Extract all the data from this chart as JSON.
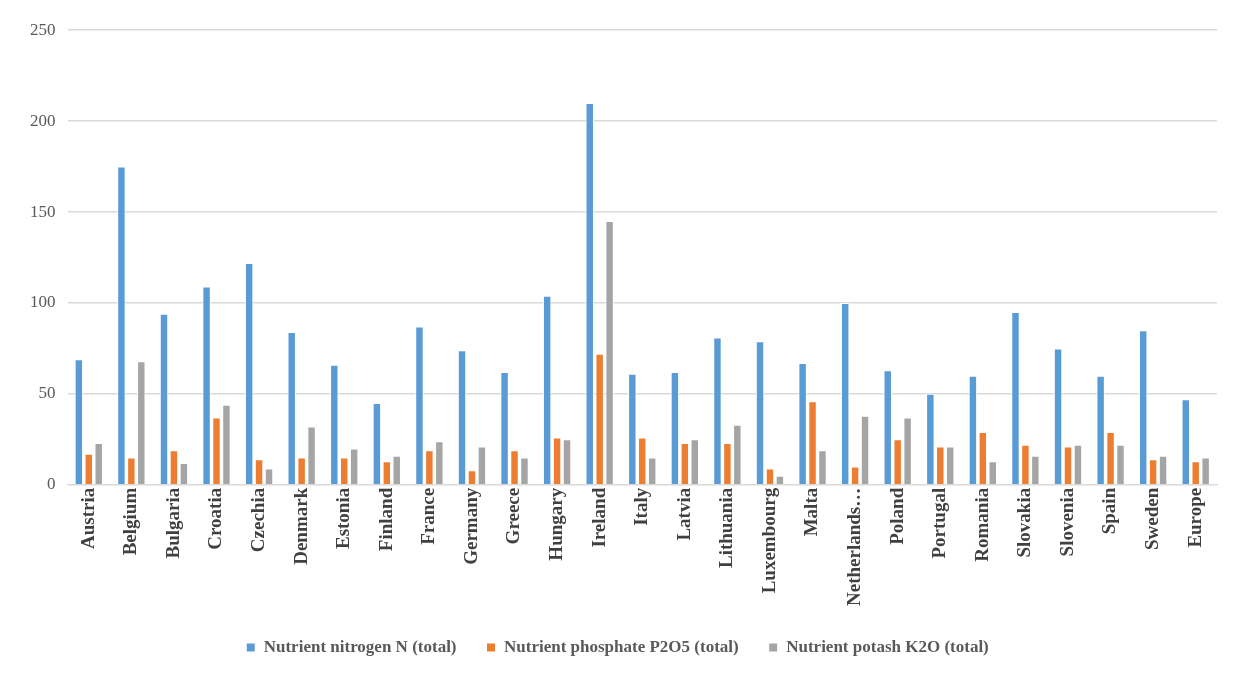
{
  "chart_data": {
    "type": "bar",
    "categories": [
      "Austria",
      "Belgium",
      "Bulgaria",
      "Croatia",
      "Czechia",
      "Denmark",
      "Estonia",
      "Finland",
      "France",
      "Germany",
      "Greece",
      "Hungary",
      "Ireland",
      "Italy",
      "Latvia",
      "Lithuania",
      "Luxembourg",
      "Malta",
      "Netherlands…",
      "Poland",
      "Portugal",
      "Romania",
      "Slovakia",
      "Slovenia",
      "Spain",
      "Sweden",
      "Europe"
    ],
    "series": [
      {
        "name": "Nutrient nitrogen N (total)",
        "color": "#5b9bd5",
        "values": [
          69,
          175,
          94,
          109,
          122,
          84,
          66,
          45,
          87,
          74,
          62,
          104,
          210,
          61,
          62,
          81,
          79,
          67,
          100,
          63,
          50,
          60,
          95,
          75,
          60,
          85,
          47
        ]
      },
      {
        "name": "Nutrient phosphate P2O5 (total)",
        "color": "#ed7d31",
        "values": [
          17,
          15,
          19,
          37,
          14,
          15,
          15,
          13,
          19,
          8,
          19,
          26,
          72,
          26,
          23,
          23,
          9,
          46,
          10,
          25,
          21,
          29,
          22,
          21,
          29,
          14,
          13
        ]
      },
      {
        "name": "Nutrient potash K2O (total)",
        "color": "#a5a5a5",
        "values": [
          23,
          68,
          12,
          44,
          9,
          32,
          20,
          16,
          24,
          21,
          15,
          25,
          145,
          15,
          25,
          33,
          5,
          19,
          38,
          37,
          21,
          13,
          16,
          22,
          22,
          16,
          15
        ]
      }
    ],
    "ylim": [
      0,
      250
    ],
    "yticks": [
      0,
      50,
      100,
      150,
      200,
      250
    ],
    "grid": "y",
    "legend": "bottom"
  }
}
